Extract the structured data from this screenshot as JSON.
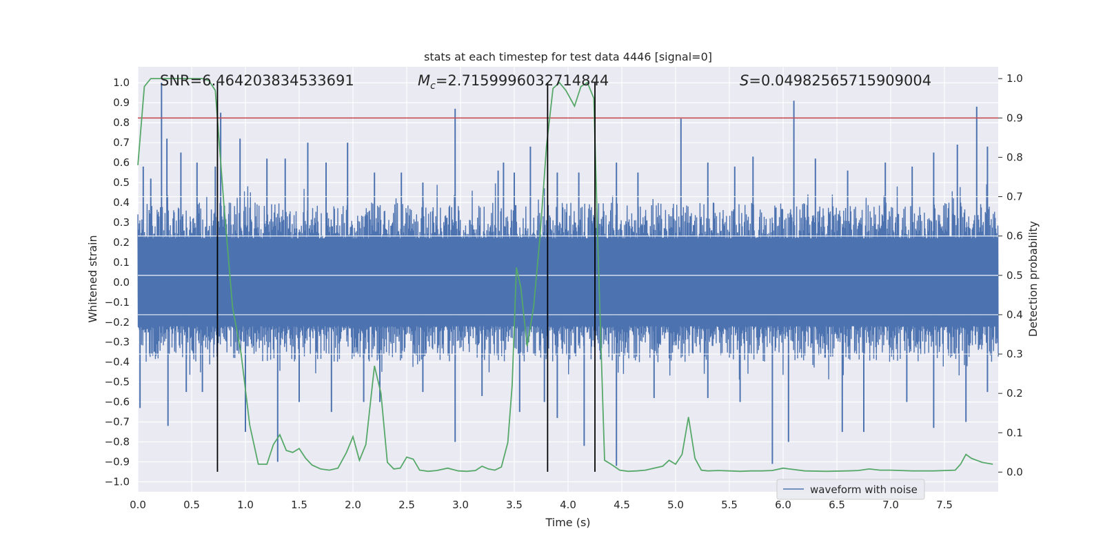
{
  "chart_data": {
    "type": "line",
    "title": "stats at each timestep for test data 4446 [signal=0]",
    "xlabel": "Time (s)",
    "ylabel": "Whitened strain",
    "y2label": "Detection probability",
    "xlim": [
      0,
      8
    ],
    "ylim": [
      -1.05,
      1.08
    ],
    "y2lim": [
      -0.05,
      1.03
    ],
    "x_ticks": [
      "0.0",
      "0.5",
      "1.0",
      "1.5",
      "2.0",
      "2.5",
      "3.0",
      "3.5",
      "4.0",
      "4.5",
      "5.0",
      "5.5",
      "6.0",
      "6.5",
      "7.0",
      "7.5"
    ],
    "y_ticks": [
      "1.0",
      "0.9",
      "0.8",
      "0.7",
      "0.6",
      "0.5",
      "0.4",
      "0.3",
      "0.2",
      "0.1",
      "0.0",
      "−0.1",
      "−0.2",
      "−0.3",
      "−0.4",
      "−0.5",
      "−0.6",
      "−0.7",
      "−0.8",
      "−0.9",
      "−1.0"
    ],
    "y2_ticks": [
      "1.0",
      "0.9",
      "0.8",
      "0.7",
      "0.6",
      "0.5",
      "0.4",
      "0.3",
      "0.2",
      "0.1",
      "0.0"
    ],
    "grid": true,
    "legend_position": "lower-right",
    "annotations": {
      "snr": "SNR=6.464203834533691",
      "mc_symbol": "M",
      "mc_sub": "c",
      "mc_value": "=2.7159996032714844",
      "s_symbol": "S",
      "s_value": "=0.04982565715909004"
    },
    "threshold": {
      "y2": 0.9,
      "color": "#c44e52"
    },
    "vlines": [
      0.74,
      3.81,
      4.25
    ],
    "series": [
      {
        "name": "waveform with noise",
        "kind": "strain",
        "color": "#4c72b0",
        "core_envelope": 0.22,
        "spikes_up": [
          [
            0.05,
            0.58
          ],
          [
            0.12,
            0.52
          ],
          [
            0.22,
            1.0
          ],
          [
            0.27,
            0.72
          ],
          [
            0.4,
            0.65
          ],
          [
            0.55,
            0.6
          ],
          [
            0.72,
            0.58
          ],
          [
            0.77,
            0.85
          ],
          [
            0.95,
            0.72
          ],
          [
            1.2,
            0.62
          ],
          [
            1.37,
            0.62
          ],
          [
            1.58,
            0.7
          ],
          [
            1.75,
            0.6
          ],
          [
            1.95,
            0.7
          ],
          [
            2.2,
            0.55
          ],
          [
            2.45,
            0.55
          ],
          [
            2.65,
            0.5
          ],
          [
            2.95,
            0.87
          ],
          [
            3.35,
            0.56
          ],
          [
            3.4,
            0.6
          ],
          [
            3.5,
            0.55
          ],
          [
            3.65,
            0.68
          ],
          [
            3.9,
            0.55
          ],
          [
            4.1,
            0.55
          ],
          [
            4.45,
            0.6
          ],
          [
            4.65,
            0.55
          ],
          [
            5.05,
            0.82
          ],
          [
            5.3,
            0.6
          ],
          [
            5.55,
            0.58
          ],
          [
            5.72,
            0.63
          ],
          [
            6.1,
            0.91
          ],
          [
            6.3,
            0.62
          ],
          [
            6.6,
            0.56
          ],
          [
            6.95,
            0.6
          ],
          [
            7.2,
            0.58
          ],
          [
            7.4,
            0.65
          ],
          [
            7.62,
            0.69
          ],
          [
            7.8,
            0.88
          ],
          [
            7.9,
            0.68
          ]
        ],
        "spikes_down": [
          [
            0.02,
            -0.63
          ],
          [
            0.28,
            -0.72
          ],
          [
            0.45,
            -0.55
          ],
          [
            0.6,
            -0.55
          ],
          [
            1.0,
            -0.75
          ],
          [
            1.3,
            -0.9
          ],
          [
            1.5,
            -0.6
          ],
          [
            1.8,
            -0.65
          ],
          [
            2.1,
            -0.6
          ],
          [
            2.25,
            -0.6
          ],
          [
            2.65,
            -0.55
          ],
          [
            2.95,
            -0.8
          ],
          [
            3.2,
            -0.57
          ],
          [
            3.55,
            -0.65
          ],
          [
            3.78,
            -0.6
          ],
          [
            3.9,
            -0.68
          ],
          [
            4.15,
            -0.82
          ],
          [
            4.45,
            -0.92
          ],
          [
            4.8,
            -0.58
          ],
          [
            5.3,
            -0.58
          ],
          [
            5.6,
            -0.6
          ],
          [
            5.9,
            -0.91
          ],
          [
            6.05,
            -0.8
          ],
          [
            6.55,
            -0.75
          ],
          [
            6.75,
            -0.75
          ],
          [
            7.15,
            -0.6
          ],
          [
            7.4,
            -0.73
          ],
          [
            7.7,
            -0.7
          ],
          [
            7.9,
            -0.55
          ]
        ]
      },
      {
        "name": "",
        "kind": "probability",
        "color": "#55a868",
        "x": [
          0.0,
          0.06,
          0.12,
          0.18,
          0.3,
          0.45,
          0.6,
          0.66,
          0.72,
          0.8,
          0.88,
          0.96,
          1.04,
          1.12,
          1.2,
          1.26,
          1.32,
          1.38,
          1.44,
          1.5,
          1.56,
          1.62,
          1.7,
          1.78,
          1.86,
          1.94,
          2.0,
          2.06,
          2.12,
          2.2,
          2.26,
          2.32,
          2.38,
          2.44,
          2.5,
          2.56,
          2.62,
          2.7,
          2.78,
          2.88,
          2.98,
          3.06,
          3.14,
          3.2,
          3.26,
          3.32,
          3.38,
          3.44,
          3.48,
          3.52,
          3.56,
          3.62,
          3.68,
          3.74,
          3.8,
          3.86,
          3.92,
          3.98,
          4.06,
          4.12,
          4.18,
          4.24,
          4.28,
          4.34,
          4.4,
          4.48,
          4.56,
          4.64,
          4.72,
          4.8,
          4.88,
          4.94,
          5.0,
          5.06,
          5.12,
          5.18,
          5.24,
          5.3,
          5.4,
          5.5,
          5.6,
          5.7,
          5.8,
          5.9,
          6.0,
          6.2,
          6.4,
          6.6,
          6.7,
          6.8,
          6.9,
          7.0,
          7.2,
          7.4,
          7.6,
          7.65,
          7.7,
          7.75,
          7.8,
          7.85,
          7.95
        ],
        "y": [
          0.78,
          0.98,
          1.0,
          1.0,
          1.0,
          1.0,
          1.0,
          0.995,
          0.97,
          0.68,
          0.42,
          0.3,
          0.12,
          0.02,
          0.02,
          0.07,
          0.095,
          0.055,
          0.05,
          0.06,
          0.035,
          0.018,
          0.008,
          0.005,
          0.01,
          0.05,
          0.09,
          0.03,
          0.07,
          0.27,
          0.2,
          0.025,
          0.008,
          0.01,
          0.038,
          0.033,
          0.005,
          0.002,
          0.004,
          0.01,
          0.003,
          0.002,
          0.004,
          0.015,
          0.008,
          0.005,
          0.013,
          0.075,
          0.22,
          0.52,
          0.47,
          0.32,
          0.42,
          0.6,
          0.83,
          0.975,
          0.99,
          0.97,
          0.93,
          0.98,
          0.99,
          0.95,
          0.55,
          0.03,
          0.02,
          0.005,
          0.002,
          0.003,
          0.005,
          0.01,
          0.015,
          0.03,
          0.02,
          0.045,
          0.14,
          0.035,
          0.005,
          0.003,
          0.004,
          0.003,
          0.002,
          0.003,
          0.003,
          0.004,
          0.01,
          0.003,
          0.002,
          0.003,
          0.004,
          0.008,
          0.005,
          0.005,
          0.003,
          0.003,
          0.005,
          0.02,
          0.045,
          0.035,
          0.03,
          0.025,
          0.02
        ]
      }
    ]
  }
}
